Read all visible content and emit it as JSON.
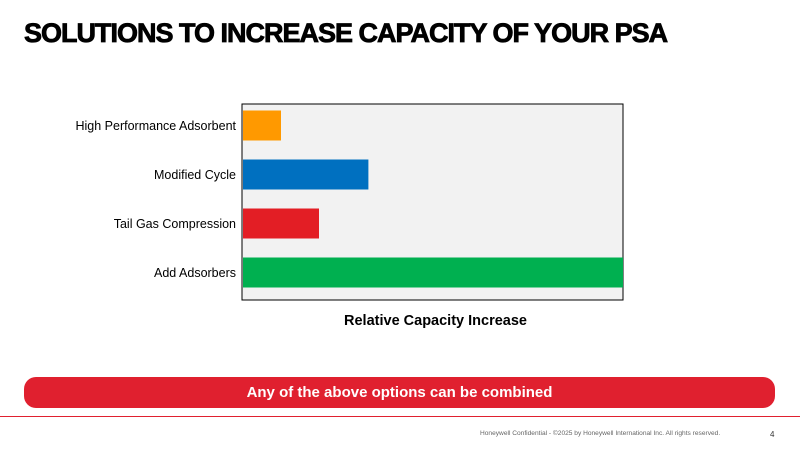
{
  "slide": {
    "title": "SOLUTIONS TO INCREASE CAPACITY OF YOUR PSA",
    "banner_text": "Any of the above options can be combined",
    "footer": "Honeywell Confidential - ©2025 by Honeywell International Inc. All rights reserved.",
    "page_number": "4"
  },
  "colors": {
    "banner": "#E0202F",
    "rule": "#E0202F",
    "plot_background": "#F2F2F2"
  },
  "chart_data": {
    "type": "bar",
    "orientation": "horizontal",
    "title": "",
    "xlabel": "Relative Capacity Increase",
    "ylabel": "",
    "categories": [
      "High Performance Adsorbent",
      "Modified Cycle",
      "Tail Gas Compression",
      "Add Adsorbers"
    ],
    "values": [
      10,
      33,
      20,
      100
    ],
    "colors": [
      "#FF9900",
      "#0070C0",
      "#E31E25",
      "#00B050"
    ],
    "xlim": [
      0,
      100
    ],
    "x_tick_labels_shown": false,
    "grid": false,
    "legend": "none"
  }
}
